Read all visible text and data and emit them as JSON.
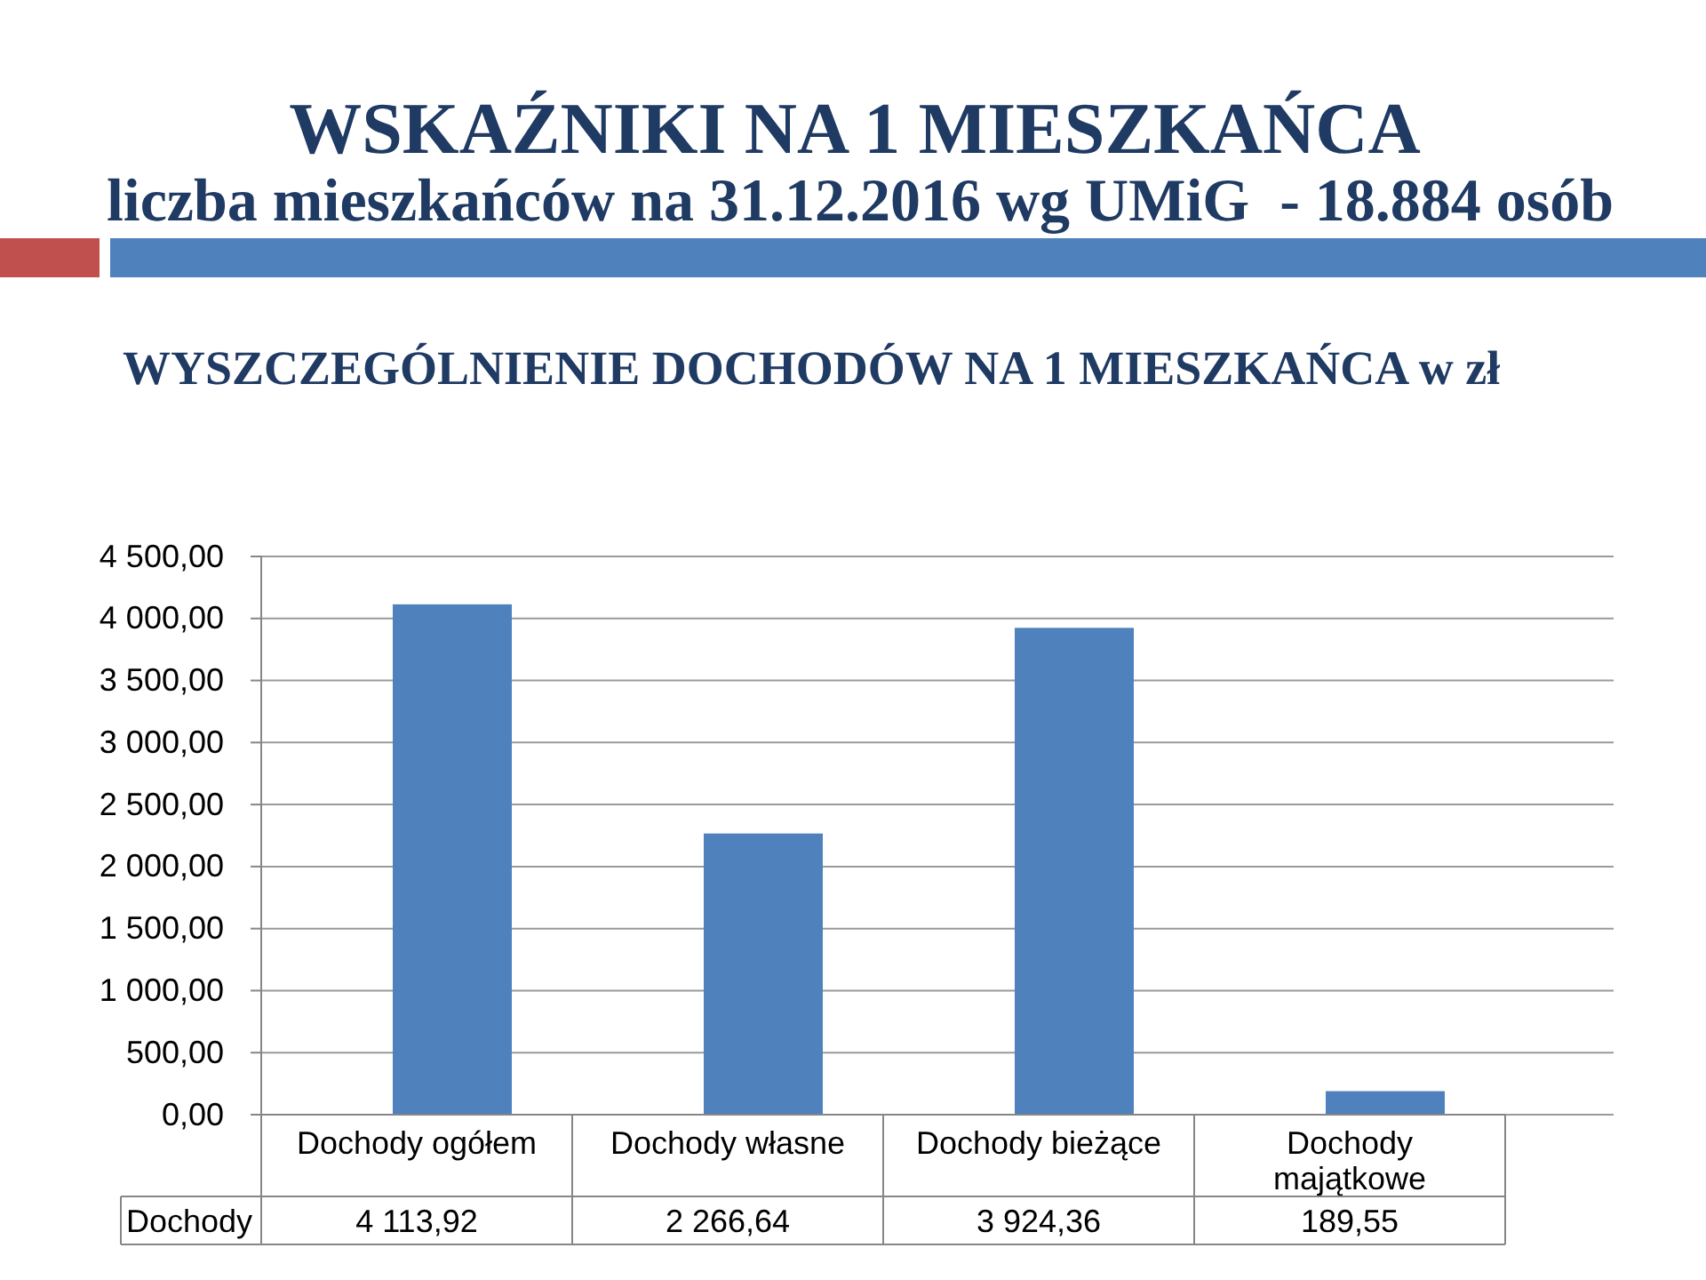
{
  "chart_data": {
    "type": "bar",
    "title": "WSKAŹNIKI NA 1 MIESZKAŃCA",
    "subtitle": "liczba mieszkańców na 31.12.2016 wg UMiG  - 18.884 osób",
    "annotations": [
      "WYSZCZEGÓLNIENIE DOCHODÓW NA 1 MIESZKAŃCA w zł"
    ],
    "categories": [
      "Dochody ogółem",
      "Dochody własne",
      "Dochody bieżące",
      "Dochody majątkowe"
    ],
    "series": [
      {
        "name": "Dochody",
        "color": "#4f81bd",
        "values": [
          4113.92,
          2266.64,
          3924.36,
          189.55
        ],
        "value_labels": [
          "4 113,92",
          "2 266,64",
          "3 924,36",
          "189,55"
        ]
      }
    ],
    "ylim": [
      0,
      4500
    ],
    "yticks": [
      {
        "value": 0,
        "label": "0,00"
      },
      {
        "value": 500,
        "label": "500,00"
      },
      {
        "value": 1000,
        "label": "1 000,00"
      },
      {
        "value": 1500,
        "label": "1 500,00"
      },
      {
        "value": 2000,
        "label": "2 000,00"
      },
      {
        "value": 2500,
        "label": "2 500,00"
      },
      {
        "value": 3000,
        "label": "3 000,00"
      },
      {
        "value": 3500,
        "label": "3 500,00"
      },
      {
        "value": 4000,
        "label": "4 000,00"
      },
      {
        "value": 4500,
        "label": "4 500,00"
      }
    ],
    "grid": "y"
  }
}
